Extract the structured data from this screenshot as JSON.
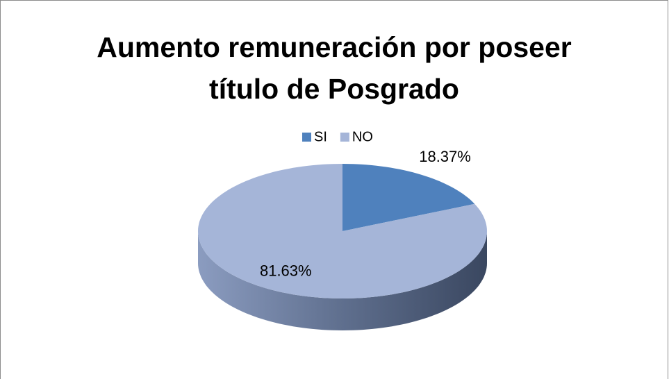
{
  "chart_data": {
    "type": "pie",
    "title": "Aumento remuneración por poseer título de Posgrado",
    "categories": [
      "SI",
      "NO"
    ],
    "values": [
      18.37,
      81.63
    ],
    "value_labels": [
      "18.37%",
      "81.63%"
    ],
    "colors": [
      "#4f81bd",
      "#a5b5d8"
    ],
    "legend": "top"
  }
}
